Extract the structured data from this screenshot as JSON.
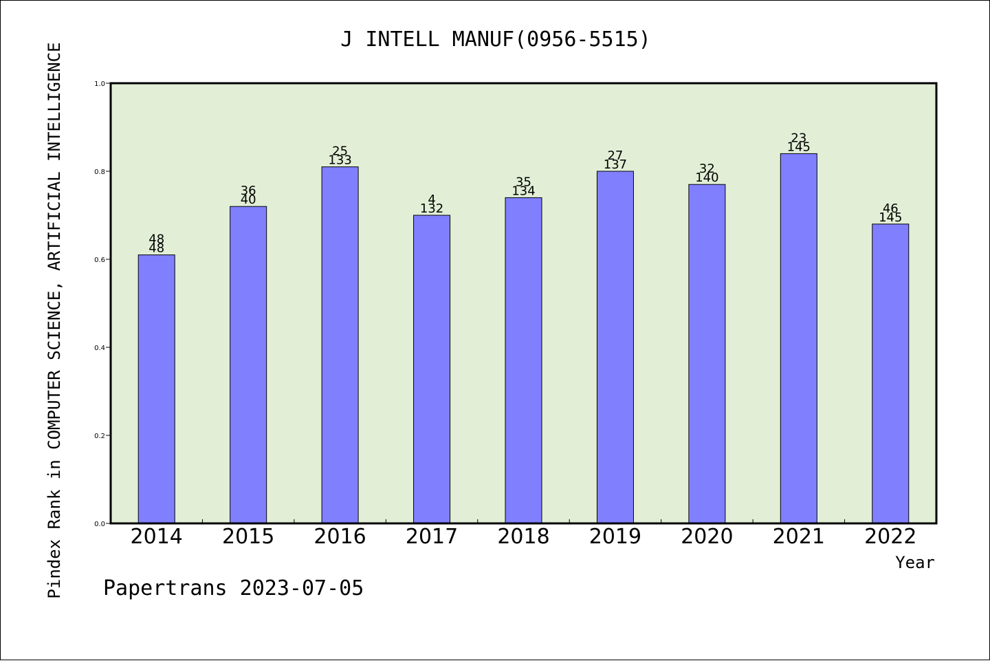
{
  "chart_data": {
    "type": "bar",
    "title": "J INTELL MANUF(0956-5515)",
    "xlabel": "Year",
    "ylabel": "Pindex Rank in COMPUTER SCIENCE, ARTIFICIAL INTELLIGENCE",
    "categories": [
      "2014",
      "2015",
      "2016",
      "2017",
      "2018",
      "2019",
      "2020",
      "2021",
      "2022"
    ],
    "values": [
      0.61,
      0.72,
      0.81,
      0.7,
      0.74,
      0.8,
      0.77,
      0.84,
      0.68
    ],
    "rank_labels": [
      "48",
      "36",
      "25",
      "4",
      "35",
      "27",
      "32",
      "23",
      "46"
    ],
    "total_labels": [
      "48",
      "40",
      "133",
      "132",
      "134",
      "137",
      "140",
      "145",
      "145"
    ],
    "yticks": [
      "0.0",
      "0.2",
      "0.4",
      "0.6",
      "0.8",
      "1.0"
    ],
    "ylim": [
      0,
      1.0
    ],
    "grid": false,
    "legend": "none",
    "colors": {
      "bar": "#8080ff",
      "plot_background": "#e2efd6",
      "axis": "#000000"
    }
  },
  "footer": {
    "credit": "Papertrans 2023-07-05"
  }
}
